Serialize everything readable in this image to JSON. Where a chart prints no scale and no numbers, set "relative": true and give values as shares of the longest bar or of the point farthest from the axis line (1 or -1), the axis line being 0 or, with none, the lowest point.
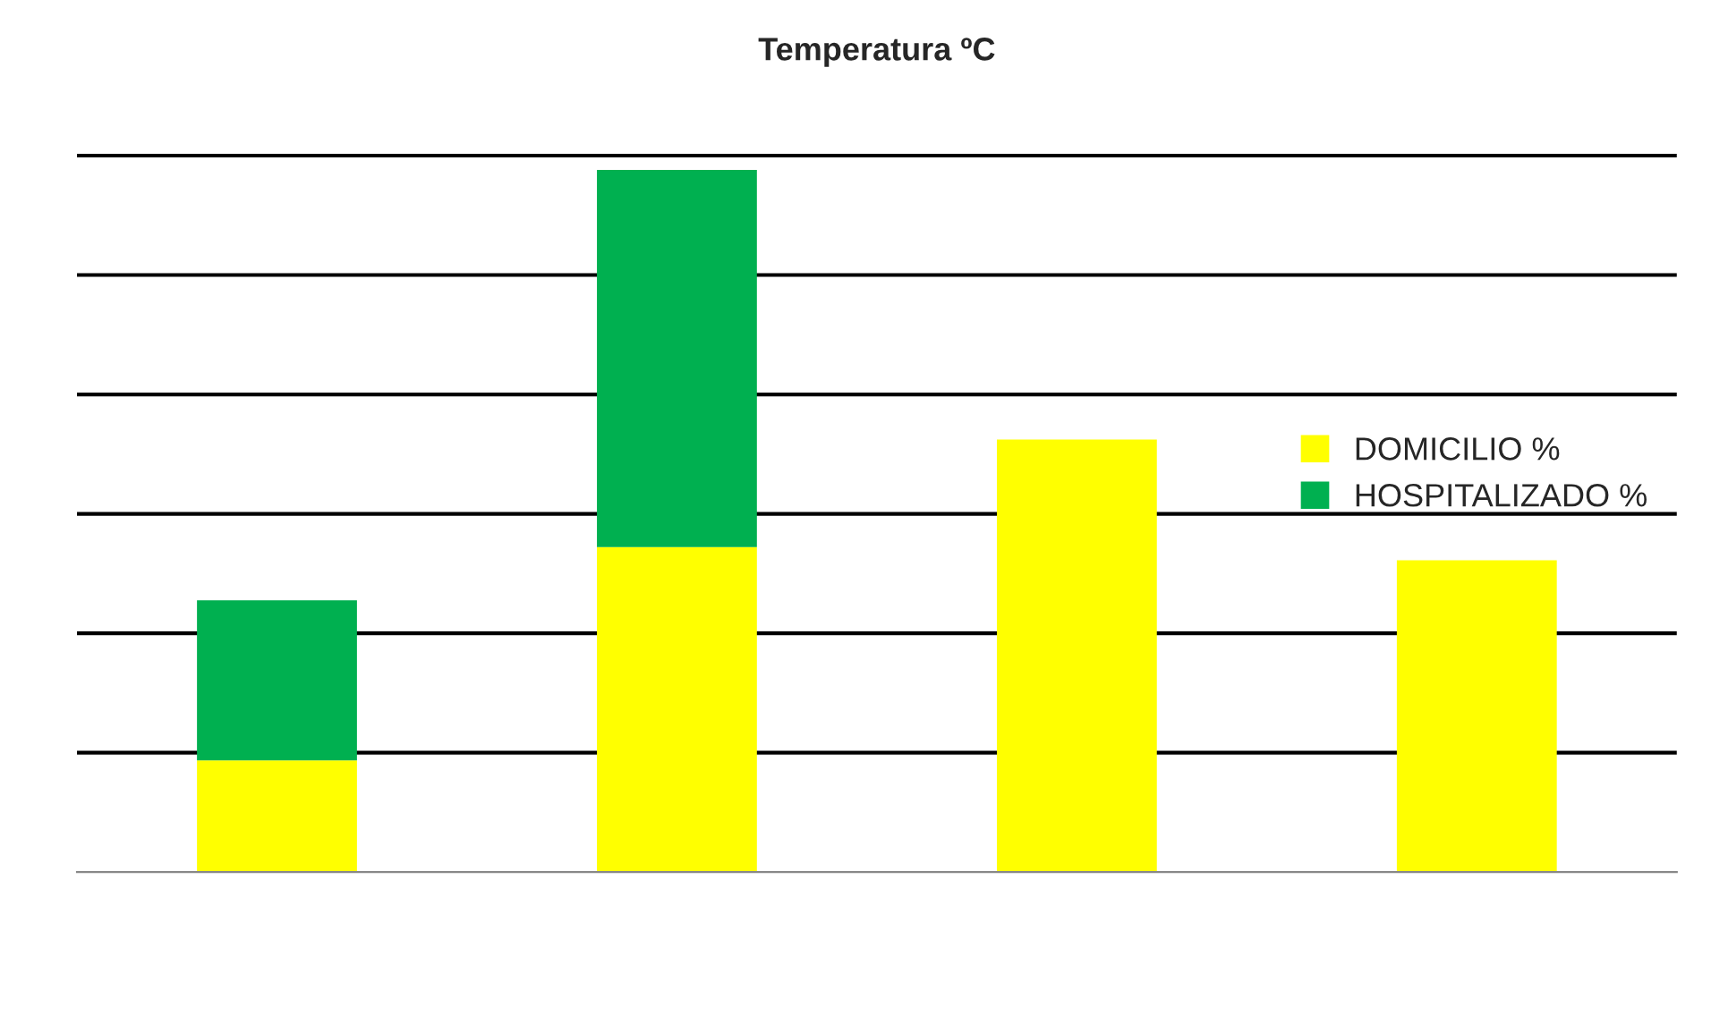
{
  "chart_data": {
    "type": "bar",
    "title": "Temperatura ºC",
    "relative": true,
    "stacked": true,
    "grid": "y",
    "legend": "right",
    "categories": [
      null,
      null,
      null,
      null
    ],
    "series": [
      {
        "name": "DOMICILIO %",
        "color": "#ffff00",
        "values": [
          0.159,
          0.463,
          0.616,
          0.444
        ]
      },
      {
        "name": "HOSPITALIZADO %",
        "color": "#00b050",
        "values": [
          0.228,
          0.537,
          null,
          null
        ]
      }
    ]
  }
}
